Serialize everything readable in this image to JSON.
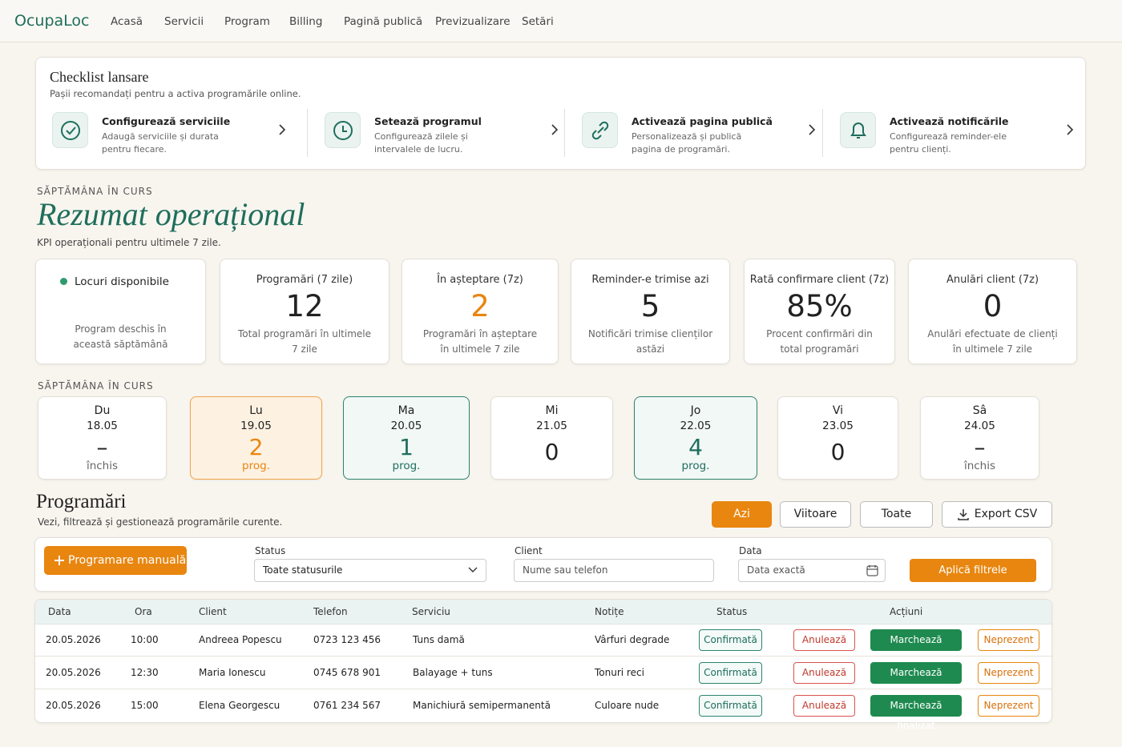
{
  "nav": {
    "brand": "OcupaLoc",
    "items": [
      "Acasă",
      "Servicii",
      "Program",
      "Billing",
      "Pagină publică",
      "Previzualizare",
      "Setări"
    ]
  },
  "checklist": {
    "title": "Checklist lansare",
    "subtitle": "Pașii recomandați pentru a activa programările online.",
    "steps": [
      {
        "title": "Configurează serviciile",
        "text": "Adaugă serviciile și durata pentru fiecare."
      },
      {
        "title": "Setează programul",
        "text": "Configurează zilele și intervalele de lucru."
      },
      {
        "title": "Activează pagina publică",
        "text": "Personalizează și publică pagina de programări."
      },
      {
        "title": "Activează notificările",
        "text": "Configurează reminder-ele pentru clienți."
      }
    ]
  },
  "summary": {
    "eyebrow": "SĂPTĂMÂNA ÎN CURS",
    "title": "Rezumat operațional",
    "subtitle": "KPI operaționali pentru ultimele 7 zile.",
    "kpis": [
      {
        "label": "Locuri disponibile",
        "text": "Program deschis în această săptămână"
      },
      {
        "label": "Programări (7 zile)",
        "value": 12,
        "text": "Total programări în ultimele 7 zile"
      },
      {
        "label": "În așteptare (7z)",
        "value": 2,
        "text": "Programări în așteptare în ultimele 7 zile"
      },
      {
        "label": "Reminder-e trimise azi",
        "value": 5,
        "text": "Notificări trimise clienților astăzi"
      },
      {
        "label": "Rată confirmare client (7z)",
        "value": "85%",
        "text": "Procent confirmări din total programări"
      },
      {
        "label": "Anulări client (7z)",
        "value": 0,
        "text": "Anulări efectuate de clienți în ultimele 7 zile"
      }
    ]
  },
  "week": {
    "eyebrow": "SĂPTĂMÂNA ÎN CURS",
    "days": [
      {
        "name": "Du",
        "date": "18.05",
        "count": "–",
        "note": "închis"
      },
      {
        "name": "Lu",
        "date": "19.05",
        "count": 2,
        "note": "prog."
      },
      {
        "name": "Ma",
        "date": "20.05",
        "count": 1,
        "note": "prog."
      },
      {
        "name": "Mi",
        "date": "21.05",
        "count": 0
      },
      {
        "name": "Jo",
        "date": "22.05",
        "count": 4,
        "note": "prog."
      },
      {
        "name": "Vi",
        "date": "23.05",
        "count": 0
      },
      {
        "name": "Sâ",
        "date": "24.05",
        "count": "–",
        "note": "închis"
      }
    ]
  },
  "appointments": {
    "title": "Programări",
    "subtitle": "Vezi, filtrează și gestionează programările curente.",
    "tabs": [
      "Azi",
      "Viitoare",
      "Toate"
    ],
    "export": "Export CSV",
    "manual": "Programare manuală",
    "filters": {
      "status_label": "Status",
      "status_value": "Toate statusurile",
      "client_label": "Client",
      "client_placeholder": "Nume sau telefon",
      "date_label": "Data",
      "date_placeholder": "Data exactă",
      "apply": "Aplică filtrele"
    },
    "table": {
      "headers": [
        "Data",
        "Ora",
        "Client",
        "Telefon",
        "Serviciu",
        "Notițe",
        "Status",
        "Acțiuni"
      ],
      "actions": [
        "Anulează",
        "Marchează finalizat",
        "Neprezent"
      ],
      "rows": [
        [
          "20.05.2026",
          "10:00",
          "Andreea Popescu",
          "0723 123 456",
          "Tuns damă",
          "Vârfuri degrade",
          "Confirmată"
        ],
        [
          "20.05.2026",
          "12:30",
          "Maria Ionescu",
          "0745 678 901",
          "Balayage + tuns",
          "Tonuri reci",
          "Confirmată"
        ],
        [
          "20.05.2026",
          "15:00",
          "Elena Georgescu",
          "0761 234 567",
          "Manichiură semipermanentă",
          "Culoare nude",
          "Confirmată"
        ]
      ]
    }
  }
}
